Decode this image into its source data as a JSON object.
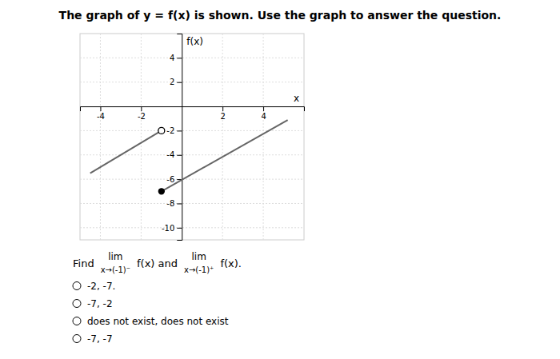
{
  "chart_data": {
    "type": "line",
    "title": "The graph of y = f(x) is shown. Use the graph to answer the question.",
    "xlabel": "x",
    "ylabel": "f(x)",
    "xlim": [
      -5,
      6
    ],
    "ylim": [
      -11,
      6
    ],
    "xticks": [
      -4,
      -2,
      2,
      4
    ],
    "yticks": [
      -10,
      -8,
      -6,
      -4,
      -2,
      2,
      4
    ],
    "grid": true,
    "series": [
      {
        "type": "line",
        "color": "#666666",
        "x": [
          -4.5,
          -1
        ],
        "values": [
          -5.5,
          -2
        ]
      },
      {
        "type": "line",
        "color": "#666666",
        "x": [
          -1,
          5.2
        ],
        "values": [
          -7,
          -1.13
        ]
      },
      {
        "type": "scatter",
        "marker": "open",
        "x": [
          -1
        ],
        "values": [
          -2
        ]
      },
      {
        "type": "scatter",
        "marker": "filled",
        "x": [
          -1
        ],
        "values": [
          -7
        ]
      }
    ],
    "annotations": [
      "Find",
      "lim",
      "x→(-1)⁻",
      "f(x) and",
      "lim",
      "x→(-1)⁺",
      "f(x)."
    ],
    "options": [
      "-2, -7.",
      "-7, -2",
      "does not exist, does not exist",
      "-7, -7"
    ]
  }
}
